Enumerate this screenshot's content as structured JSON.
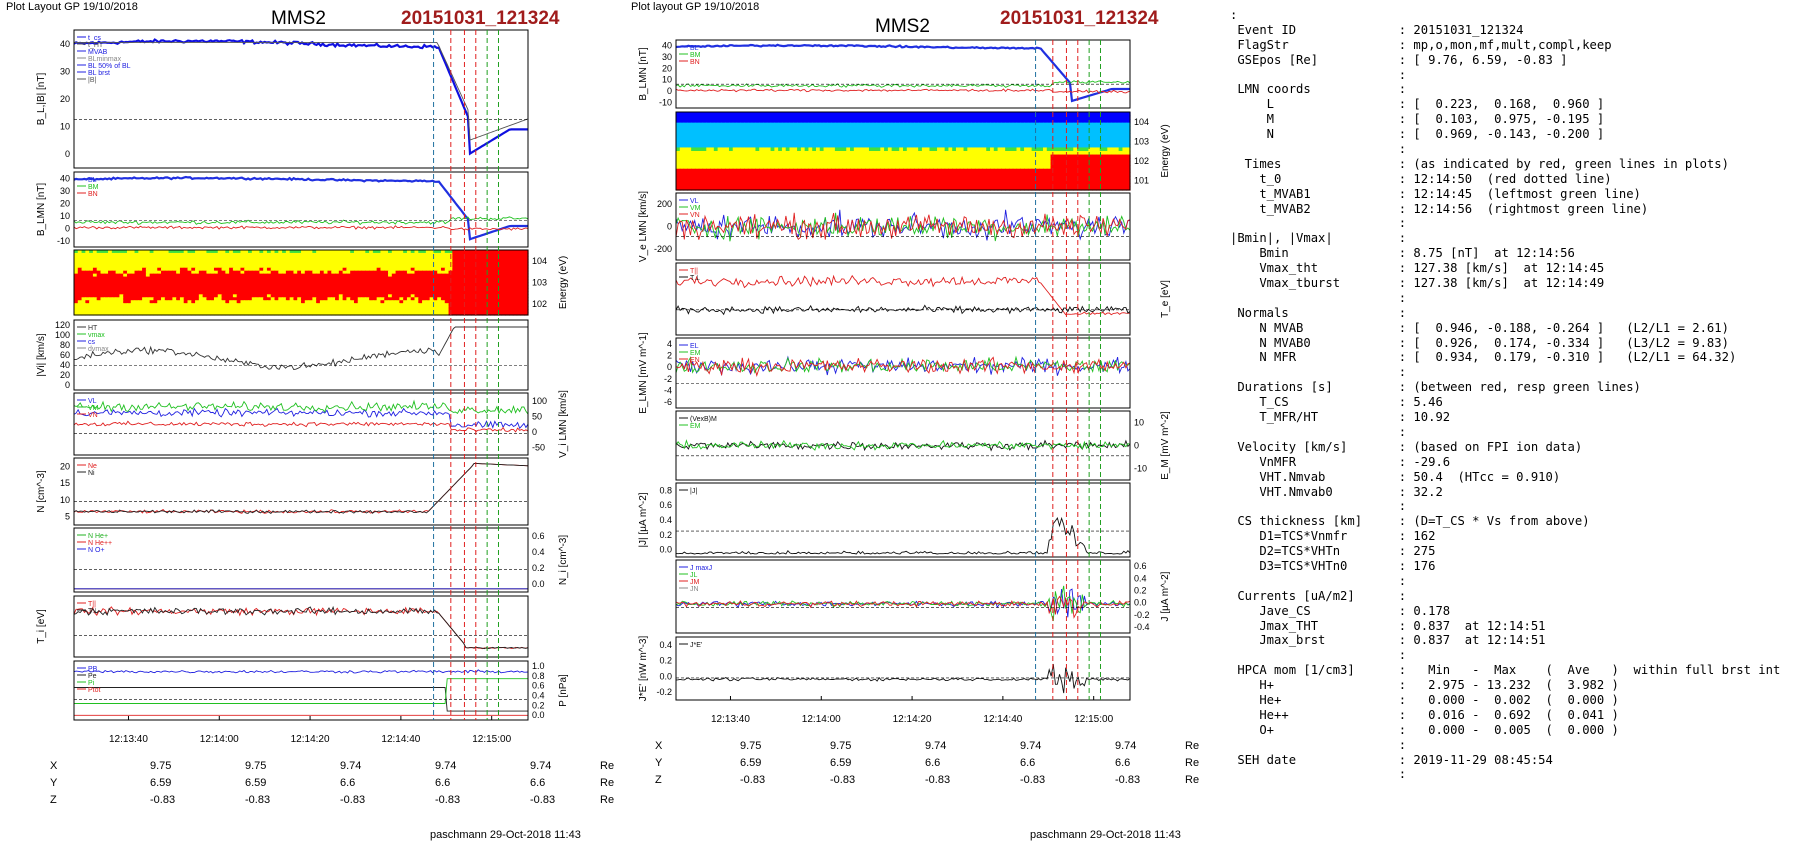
{
  "left": {
    "header": "Plot Layout GP 19/10/2018",
    "title": "MMS2",
    "event": "20151031_121324",
    "footer": "paschmann 29-Oct-2018 11:43",
    "x_ticks": [
      "12:13:40",
      "12:14:00",
      "12:14:20",
      "12:14:40",
      "12:15:00"
    ],
    "coords": {
      "labels": [
        "X",
        "Y",
        "Z"
      ],
      "unit": "Re",
      "rows": [
        [
          "9.75",
          "9.75",
          "9.74",
          "9.74",
          "9.74"
        ],
        [
          "6.59",
          "6.59",
          "6.6",
          "6.6",
          "6.6"
        ],
        [
          "-0.83",
          "-0.83",
          "-0.83",
          "-0.83",
          "-0.83"
        ]
      ]
    }
  },
  "right": {
    "header": "Plot layout GP 19/10/2018",
    "title": "MMS2",
    "event": "20151031_121324",
    "footer": "paschmann 29-Oct-2018 11:43",
    "x_ticks": [
      "12:13:40",
      "12:14:00",
      "12:14:20",
      "12:14:40",
      "12:15:00"
    ],
    "coords": {
      "labels": [
        "X",
        "Y",
        "Z"
      ],
      "unit": "Re",
      "rows": [
        [
          "9.75",
          "9.75",
          "9.74",
          "9.74",
          "9.74"
        ],
        [
          "6.59",
          "6.59",
          "6.6",
          "6.6",
          "6.6"
        ],
        [
          "-0.83",
          "-0.83",
          "-0.83",
          "-0.83",
          "-0.83"
        ]
      ]
    }
  },
  "info_lines": [
    ":",
    " Event ID              : 20151031_121324",
    " FlagStr               : mp,o,mon,mf,mult,compl,keep",
    " GSEpos [Re]           : [ 9.76, 6.59, -0.83 ]",
    "                       :",
    " LMN coords            :",
    "     L                 : [  0.223,  0.168,  0.960 ]",
    "     M                 : [  0.103,  0.975, -0.195 ]",
    "     N                 : [  0.969, -0.143, -0.200 ]",
    "                       :",
    "  Times                : (as indicated by red, green lines in plots)",
    "    t_0                : 12:14:50  (red dotted line)",
    "    t_MVAB1            : 12:14:45  (leftmost green line)",
    "    t_MVAB2            : 12:14:56  (rightmost green line)",
    "                       :",
    "|Bmin|, |Vmax|         :",
    "    Bmin               : 8.75 [nT]  at 12:14:56",
    "    Vmax_tht           : 127.38 [km/s]  at 12:14:45",
    "    Vmax_tburst        : 127.38 [km/s]  at 12:14:49",
    "                       :",
    " Normals               :",
    "    N MVAB             : [  0.946, -0.188, -0.264 ]   (L2/L1 = 2.61)",
    "    N MVAB0            : [  0.926,  0.174, -0.334 ]   (L3/L2 = 9.83)",
    "    N MFR              : [  0.934,  0.179, -0.310 ]   (L2/L1 = 64.32)",
    "                       :",
    " Durations [s]         : (between red, resp green lines)",
    "    T_CS               : 5.46",
    "    T_MFR/HT           : 10.92",
    "                       :",
    " Velocity [km/s]       : (based on FPI ion data)",
    "    VnMFR              : -29.6",
    "    VHT.Nmvab          : 50.4  (HTcc = 0.910)",
    "    VHT.Nmvab0         : 32.2",
    "                       :",
    " CS thickness [km]     : (D=T_CS * Vs from above)",
    "    D1=TCS*Vnmfr       : 162",
    "    D2=TCS*VHTn        : 275",
    "    D3=TCS*VHTn0       : 176",
    "                       :",
    " Currents [uA/m2]      :",
    "    Jave_CS            : 0.178",
    "    Jmax_THT           : 0.837  at 12:14:51",
    "    Jmax_brst          : 0.837  at 12:14:51",
    "                       :",
    " HPCA mom [1/cm3]      :   Min   -  Max    (  Ave   )  within full brst int",
    "    H+                 :   2.975 - 13.232  (  3.982 )",
    "    He+                :   0.000 -  0.002  (  0.000 )",
    "    He++               :   0.016 -  0.692  (  0.041 )",
    "    O+                 :   0.000 -  0.005  (  0.000 )",
    "                       :",
    " SEH date              : 2019-11-29 08:45:54",
    "                       :"
  ],
  "chart_data": [
    {
      "type": "line",
      "title": "MMS2",
      "subtitle": "20151031_121324",
      "x_tick_labels": [
        "12:13:40",
        "12:14:00",
        "12:14:20",
        "12:14:40",
        "12:15:00"
      ],
      "event_lines": {
        "t_0": "12:14:50",
        "t_MVAB1": "12:14:45",
        "t_MVAB2": "12:14:56"
      },
      "panels": [
        {
          "id": "bl",
          "ylabel": "B_L,|B| [nT]",
          "ylim": [
            0,
            40
          ],
          "yticks": [
            "0",
            "10",
            "20",
            "30",
            "40"
          ],
          "legend": [
            "t_cs",
            "t_HT",
            "MVAB",
            "BLminmax",
            "BL 50% of BL",
            "BL brst",
            "|B|"
          ],
          "series": [
            {
              "name": "BL",
              "color": "#1010e0",
              "shape": "bl"
            },
            {
              "name": "|B|",
              "color": "#555555",
              "shape": "bmag"
            }
          ]
        },
        {
          "id": "blmn",
          "ylabel": "B_LMN [nT]",
          "ylim": [
            -10,
            40
          ],
          "yticks": [
            "-10",
            "0",
            "10",
            "20",
            "30",
            "40"
          ],
          "legend": [
            "BL",
            "BM",
            "BN"
          ],
          "series": [
            {
              "name": "BL",
              "color": "#2030e0",
              "shape": "bl"
            },
            {
              "name": "BM",
              "color": "#20c020",
              "shape": "bm"
            },
            {
              "name": "BN",
              "color": "#e02020",
              "shape": "bn"
            }
          ]
        },
        {
          "id": "spec",
          "ylabel": "Energy (eV)",
          "yticks": [
            "10^2",
            "10^3",
            "10^4"
          ],
          "type": "spectrogram"
        },
        {
          "id": "vi",
          "ylabel": "|Vi| [km/s]",
          "ylim": [
            0,
            120
          ],
          "yticks": [
            "0",
            "20",
            "40",
            "60",
            "80",
            "100",
            "120"
          ],
          "legend": [
            "HT",
            "vmax",
            "cs",
            "dvmax"
          ],
          "series": [
            {
              "name": "|Vi|",
              "color": "#333333",
              "shape": "vi"
            }
          ]
        },
        {
          "id": "vilmn",
          "ylabel": "V_i LMN [km/s]",
          "ylim": [
            -50,
            100
          ],
          "yticks": [
            "-50",
            "0",
            "50",
            "100"
          ],
          "legend": [
            "VL",
            "VM",
            "VN"
          ],
          "series": [
            {
              "name": "VL",
              "color": "#2020e0",
              "shape": "vl"
            },
            {
              "name": "VM",
              "color": "#20c020",
              "shape": "vm"
            },
            {
              "name": "VN",
              "color": "#e02020",
              "shape": "vn"
            }
          ]
        },
        {
          "id": "n",
          "ylabel": "N [cm^-3]",
          "ylim": [
            0,
            20
          ],
          "yticks": [
            "5",
            "10",
            "15",
            "20"
          ],
          "legend": [
            "Ne",
            "Ni"
          ],
          "series": [
            {
              "name": "Ne",
              "color": "#e02020",
              "shape": "n"
            },
            {
              "name": "Ni",
              "color": "#222222",
              "shape": "n"
            }
          ]
        },
        {
          "id": "ni",
          "ylabel": "N_i [cm^-3]",
          "ylim": [
            0,
            0.6
          ],
          "yticks": [
            "0.0",
            "0.2",
            "0.4",
            "0.6"
          ],
          "legend": [
            "N He+",
            "N He++",
            "N O+"
          ],
          "series": [
            {
              "name": "N He+",
              "color": "#20b020",
              "shape": "flat"
            },
            {
              "name": "N He++",
              "color": "#e02020",
              "shape": "flat"
            },
            {
              "name": "N O+",
              "color": "#2020e0",
              "shape": "flat"
            }
          ]
        },
        {
          "id": "ti",
          "ylabel": "T_i [eV]",
          "legend": [
            "T||",
            "T⊥"
          ],
          "series": [
            {
              "name": "T||",
              "color": "#e02020",
              "shape": "ti"
            },
            {
              "name": "T⊥",
              "color": "#222222",
              "shape": "ti"
            }
          ]
        },
        {
          "id": "p",
          "ylabel": "P [nPa]",
          "ylim": [
            0,
            1.0
          ],
          "yticks": [
            "0.0",
            "0.2",
            "0.4",
            "0.6",
            "0.8",
            "1.0"
          ],
          "legend": [
            "PB",
            "Pe",
            "Pi",
            "Ptot"
          ],
          "series": [
            {
              "name": "Ptot",
              "color": "#2020e0",
              "shape": "ptot"
            },
            {
              "name": "Pi",
              "color": "#222222",
              "shape": "pi"
            },
            {
              "name": "PB",
              "color": "#20c020",
              "shape": "pb"
            },
            {
              "name": "Pe",
              "color": "#e02020",
              "shape": "pe"
            }
          ]
        }
      ]
    },
    {
      "type": "line",
      "title": "MMS2",
      "subtitle": "20151031_121324",
      "x_tick_labels": [
        "12:13:40",
        "12:14:00",
        "12:14:20",
        "12:14:40",
        "12:15:00"
      ],
      "panels": [
        {
          "id": "blmn",
          "ylabel": "B_LMN [nT]",
          "ylim": [
            -10,
            40
          ],
          "yticks": [
            "-10",
            "0",
            "10",
            "20",
            "30",
            "40"
          ],
          "legend": [
            "BL",
            "BM",
            "BN"
          ],
          "series": [
            {
              "name": "BL",
              "color": "#2030e0",
              "shape": "bl"
            },
            {
              "name": "BM",
              "color": "#20c020",
              "shape": "bm"
            },
            {
              "name": "BN",
              "color": "#e02020",
              "shape": "bn"
            }
          ]
        },
        {
          "id": "spec",
          "ylabel": "Energy (eV)",
          "yticks": [
            "10^1",
            "10^2",
            "10^3",
            "10^4"
          ],
          "type": "spectrogram"
        },
        {
          "id": "ve",
          "ylabel": "V_e LMN [km/s]",
          "ylim": [
            -200,
            200
          ],
          "yticks": [
            "-200",
            "0",
            "200"
          ],
          "legend": [
            "VL",
            "VM",
            "VN"
          ],
          "series": [
            {
              "name": "VL",
              "color": "#2020e0",
              "shape": "noisyve"
            },
            {
              "name": "VM",
              "color": "#20c020",
              "shape": "noisyve"
            },
            {
              "name": "VN",
              "color": "#e02020",
              "shape": "noisyve"
            }
          ]
        },
        {
          "id": "te",
          "ylabel": "T_e [eV]",
          "legend": [
            "T||",
            "T⊥"
          ],
          "series": [
            {
              "name": "T||",
              "color": "#e02020",
              "shape": "te1"
            },
            {
              "name": "T⊥",
              "color": "#111111",
              "shape": "te2"
            }
          ]
        },
        {
          "id": "e",
          "ylabel": "E_LMN [mV m^-1]",
          "ylim": [
            -6,
            4
          ],
          "yticks": [
            "-6",
            "-4",
            "-2",
            "0",
            "2",
            "4"
          ],
          "legend": [
            "EL",
            "EM",
            "EN"
          ],
          "series": [
            {
              "name": "EL",
              "color": "#2020e0",
              "shape": "noise"
            },
            {
              "name": "EM",
              "color": "#20c020",
              "shape": "noise"
            },
            {
              "name": "EN",
              "color": "#e02020",
              "shape": "noise"
            }
          ]
        },
        {
          "id": "em",
          "ylabel": "E_M [mV m^-2]",
          "ylim": [
            -10,
            10
          ],
          "yticks": [
            "-10",
            "0",
            "10"
          ],
          "legend": [
            "(VexB)M",
            "EM"
          ],
          "series": [
            {
              "name": "(VexB)M",
              "color": "#111111",
              "shape": "emn"
            },
            {
              "name": "EM",
              "color": "#20c020",
              "shape": "emn"
            }
          ]
        },
        {
          "id": "j",
          "ylabel": "|J| [µA m^-2]",
          "ylim": [
            0,
            0.8
          ],
          "yticks": [
            "0.0",
            "0.2",
            "0.4",
            "0.6",
            "0.8"
          ],
          "legend": [
            "|J|"
          ],
          "series": [
            {
              "name": "|J|",
              "color": "#111111",
              "shape": "j"
            }
          ]
        },
        {
          "id": "jlmn",
          "ylabel": "J [µA m^-2]",
          "ylim": [
            -0.4,
            0.6
          ],
          "yticks": [
            "-0.4",
            "-0.2",
            "0.0",
            "0.2",
            "0.4",
            "0.6"
          ],
          "legend": [
            "J maxJ",
            "JL",
            "JM",
            "JN"
          ],
          "series": [
            {
              "name": "JL",
              "color": "#2020e0",
              "shape": "jn"
            },
            {
              "name": "JM",
              "color": "#20c020",
              "shape": "jn"
            },
            {
              "name": "JN",
              "color": "#e02020",
              "shape": "jn"
            }
          ]
        },
        {
          "id": "je",
          "ylabel": "J*E' [nW m^-3]",
          "ylim": [
            -0.2,
            0.4
          ],
          "yticks": [
            "-0.2",
            "0.0",
            "0.2",
            "0.4"
          ],
          "legend": [
            "J*E'"
          ],
          "series": [
            {
              "name": "J*E'",
              "color": "#111111",
              "shape": "je"
            }
          ]
        }
      ]
    }
  ]
}
